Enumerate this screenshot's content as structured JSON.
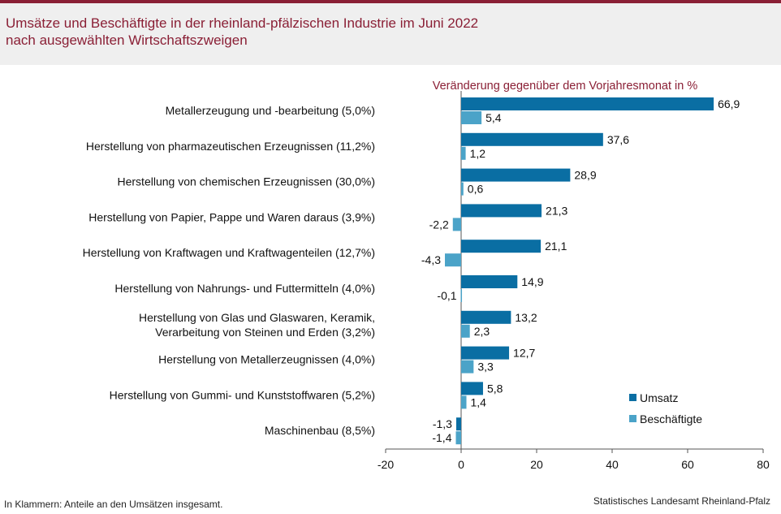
{
  "header": {
    "title_line1": "Umsätze und Beschäftigte in der rheinland-pfälzischen Industrie im Juni 2022",
    "title_line2": "nach ausgewählten Wirtschaftszweigen"
  },
  "footer": {
    "note": "In Klammern: Anteile an den Umsätzen insgesamt.",
    "source": "Statistisches Landesamt Rheinland-Pfalz"
  },
  "colors": {
    "title": "#8a1f35",
    "umsatz": "#0a6ea3",
    "beschaeftigte": "#4ba3c8"
  },
  "chart_data": {
    "type": "bar",
    "orientation": "horizontal",
    "title": "Veränderung gegenüber dem Vorjahresmonat in %",
    "categories": [
      "Metallerzeugung und -bearbeitung (5,0%)",
      "Herstellung von pharmazeutischen Erzeugnissen (11,2%)",
      "Herstellung von chemischen Erzeugnissen (30,0%)",
      "Herstellung von Papier, Pappe und Waren daraus (3,9%)",
      "Herstellung von Kraftwagen und Kraftwagenteilen (12,7%)",
      "Herstellung von Nahrungs- und Futtermitteln (4,0%)",
      "Herstellung von Glas und Glaswaren, Keramik,\nVerarbeitung von Steinen und Erden (3,2%)",
      "Herstellung von Metallerzeugnissen (4,0%)",
      "Herstellung von Gummi- und Kunststoffwaren (5,2%)",
      "Maschinenbau (8,5%)"
    ],
    "series": [
      {
        "name": "Umsatz",
        "values": [
          66.9,
          37.6,
          28.9,
          21.3,
          21.1,
          14.9,
          13.2,
          12.7,
          5.8,
          -1.3
        ],
        "labels": [
          "66,9",
          "37,6",
          "28,9",
          "21,3",
          "21,1",
          "14,9",
          "13,2",
          "12,7",
          "5,8",
          "-1,3"
        ]
      },
      {
        "name": "Beschäftigte",
        "values": [
          5.4,
          1.2,
          0.6,
          -2.2,
          -4.3,
          -0.1,
          2.3,
          3.3,
          1.4,
          -1.4
        ],
        "labels": [
          "5,4",
          "1,2",
          "0,6",
          "-2,2",
          "-4,3",
          "-0,1",
          "2,3",
          "3,3",
          "1,4",
          "-1,4"
        ]
      }
    ],
    "xlim": [
      -20,
      80
    ],
    "xticks": [
      -20,
      0,
      20,
      40,
      60,
      80
    ],
    "xtick_labels": [
      "-20",
      "0",
      "20",
      "40",
      "60",
      "80"
    ],
    "grid": false,
    "legend_position": "bottom-right"
  }
}
